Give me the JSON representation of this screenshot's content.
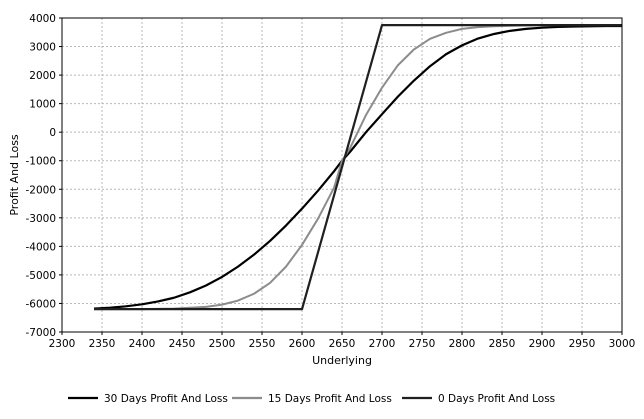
{
  "chart_data": {
    "type": "line",
    "xlabel": "Underlying",
    "ylabel": "Profit And Loss",
    "xlim": [
      2300,
      3000
    ],
    "ylim": [
      -7000,
      4000
    ],
    "xticks": [
      2300,
      2350,
      2400,
      2450,
      2500,
      2550,
      2600,
      2650,
      2700,
      2750,
      2800,
      2850,
      2900,
      2950,
      3000
    ],
    "yticks": [
      -7000,
      -6000,
      -5000,
      -4000,
      -3000,
      -2000,
      -1000,
      0,
      1000,
      2000,
      3000,
      4000
    ],
    "grid": true,
    "legend_position": "bottom",
    "series": [
      {
        "name": "30 Days Profit And Loss",
        "color": "#000000",
        "x": [
          2340,
          2360,
          2380,
          2400,
          2420,
          2440,
          2460,
          2480,
          2500,
          2520,
          2540,
          2560,
          2580,
          2600,
          2620,
          2640,
          2650,
          2660,
          2680,
          2700,
          2720,
          2740,
          2760,
          2780,
          2800,
          2820,
          2840,
          2860,
          2880,
          2900,
          2920,
          2940,
          2960,
          2980,
          3000
        ],
        "y": [
          -6180,
          -6150,
          -6100,
          -6030,
          -5930,
          -5800,
          -5610,
          -5370,
          -5070,
          -4710,
          -4290,
          -3810,
          -3270,
          -2680,
          -2050,
          -1370,
          -1000,
          -690,
          0,
          630,
          1250,
          1810,
          2310,
          2730,
          3040,
          3280,
          3440,
          3550,
          3620,
          3660,
          3690,
          3700,
          3710,
          3720,
          3720
        ]
      },
      {
        "name": "15 Days Profit And Loss",
        "color": "#8c8c8c",
        "x": [
          2340,
          2400,
          2440,
          2480,
          2500,
          2520,
          2540,
          2560,
          2580,
          2600,
          2620,
          2640,
          2650,
          2660,
          2680,
          2700,
          2720,
          2740,
          2760,
          2780,
          2800,
          2820,
          2840,
          2860,
          2880,
          2900,
          2950,
          3000
        ],
        "y": [
          -6200,
          -6200,
          -6180,
          -6120,
          -6040,
          -5900,
          -5660,
          -5280,
          -4710,
          -3950,
          -3030,
          -1950,
          -1000,
          -560,
          600,
          1560,
          2350,
          2900,
          3270,
          3480,
          3620,
          3680,
          3710,
          3730,
          3740,
          3750,
          3750,
          3750
        ]
      },
      {
        "name": "0 Days Profit And Loss",
        "color": "#202020",
        "x": [
          2340,
          2600,
          2700,
          3000
        ],
        "y": [
          -6200,
          -6200,
          3750,
          3750
        ]
      }
    ]
  }
}
